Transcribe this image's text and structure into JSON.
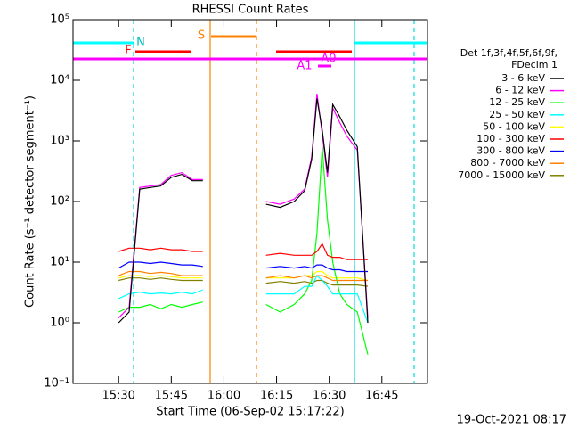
{
  "chart_data": {
    "type": "line",
    "title": "RHESSI Count Rates",
    "x_label": "Start Time (06-Sep-02 15:17:22)",
    "y_label": "Count Rate (s⁻¹ detector segment⁻¹)",
    "legend_title": [
      "Det 1f,3f,4f,5f,6f,9f,",
      "FDecim 1"
    ],
    "footer": "19-Oct-2021 08:17",
    "annotations": [
      "N",
      "F",
      "S",
      "A1",
      "A0"
    ],
    "log_y": true,
    "xlim": [
      17,
      118
    ],
    "xticks": [
      {
        "value": 30,
        "label": "15:30"
      },
      {
        "value": 45,
        "label": "15:45"
      },
      {
        "value": 60,
        "label": "16:00"
      },
      {
        "value": 75,
        "label": "16:15"
      },
      {
        "value": 90,
        "label": "16:30"
      },
      {
        "value": 105,
        "label": "16:45"
      }
    ],
    "ylim": [
      0.1,
      100000
    ],
    "yticks": [
      {
        "value": 0.1,
        "label": "10⁻¹"
      },
      {
        "value": 1,
        "label": "10⁰"
      },
      {
        "value": 10,
        "label": "10¹"
      },
      {
        "value": 100,
        "label": "10²"
      },
      {
        "value": 1000,
        "label": "10³"
      },
      {
        "value": 10000,
        "label": "10⁴"
      },
      {
        "value": 100000,
        "label": "10⁵"
      }
    ],
    "x": [
      30,
      33,
      36,
      39,
      42,
      45,
      48,
      51,
      54,
      62,
      72,
      76,
      80,
      83,
      85,
      86.5,
      88,
      89.5,
      91,
      93,
      95,
      98,
      101
    ],
    "series": [
      {
        "name": "3 - 6 keV",
        "color": "#000000",
        "values": [
          1,
          1.5,
          160,
          170,
          180,
          250,
          280,
          220,
          220,
          null,
          90,
          80,
          100,
          150,
          500,
          5000,
          1500,
          300,
          4000,
          2500,
          1500,
          800,
          1
        ]
      },
      {
        "name": "6 - 12 keV",
        "color": "#ff00ff",
        "values": [
          1.2,
          1.8,
          170,
          180,
          190,
          270,
          300,
          230,
          230,
          null,
          100,
          90,
          110,
          160,
          550,
          6000,
          1300,
          250,
          3500,
          2000,
          1200,
          700,
          1.2
        ]
      },
      {
        "name": "12 - 25 keV",
        "color": "#00ff00",
        "values": [
          1.5,
          1.8,
          1.8,
          2,
          1.7,
          2,
          1.8,
          2,
          2.2,
          null,
          2,
          1.5,
          2,
          3,
          5,
          30,
          800,
          50,
          10,
          3,
          2,
          1.5,
          0.3
        ]
      },
      {
        "name": "25 - 50 keV",
        "color": "#00ffff",
        "values": [
          2.5,
          3,
          3.2,
          3,
          3.1,
          3,
          3.2,
          3,
          3.5,
          null,
          3,
          3,
          3,
          4,
          4,
          6,
          5,
          4,
          3,
          3,
          3,
          3,
          1
        ]
      },
      {
        "name": "50 - 100 keV",
        "color": "#ffff00",
        "values": [
          5.5,
          6,
          6,
          5.8,
          6,
          5.8,
          5.5,
          5.5,
          5.5,
          null,
          5.5,
          5.5,
          5.5,
          6,
          6,
          7,
          7,
          6,
          5.5,
          5.5,
          5.5,
          5.5,
          5
        ]
      },
      {
        "name": "100 - 300 keV",
        "color": "#ff0000",
        "values": [
          15,
          17,
          17,
          16,
          17,
          16,
          16,
          15,
          15,
          null,
          13,
          14,
          13,
          13,
          13,
          15,
          20,
          13,
          12,
          12,
          11,
          11,
          11
        ]
      },
      {
        "name": "300 - 800 keV",
        "color": "#0000ff",
        "values": [
          8,
          10,
          10,
          9.5,
          10,
          9.5,
          9,
          9,
          8.5,
          null,
          8,
          8.5,
          8,
          8.5,
          8,
          9,
          9,
          8,
          7.5,
          7.5,
          7,
          7,
          7
        ]
      },
      {
        "name": "800 - 7000 keV",
        "color": "#ff8000",
        "values": [
          6,
          7,
          7,
          6.5,
          6.8,
          6.5,
          6,
          6,
          6,
          null,
          5.5,
          6,
          5.5,
          6,
          5.5,
          6,
          6,
          5.5,
          5,
          5,
          5,
          5,
          5
        ]
      },
      {
        "name": "7000 - 15000 keV",
        "color": "#808000",
        "values": [
          5,
          5.5,
          5.5,
          5.2,
          5.5,
          5.2,
          5,
          5,
          5,
          null,
          4.5,
          4.8,
          4.5,
          4.8,
          4.5,
          5,
          5,
          4.5,
          4.2,
          4.2,
          4.2,
          4.2,
          4
        ]
      }
    ]
  }
}
